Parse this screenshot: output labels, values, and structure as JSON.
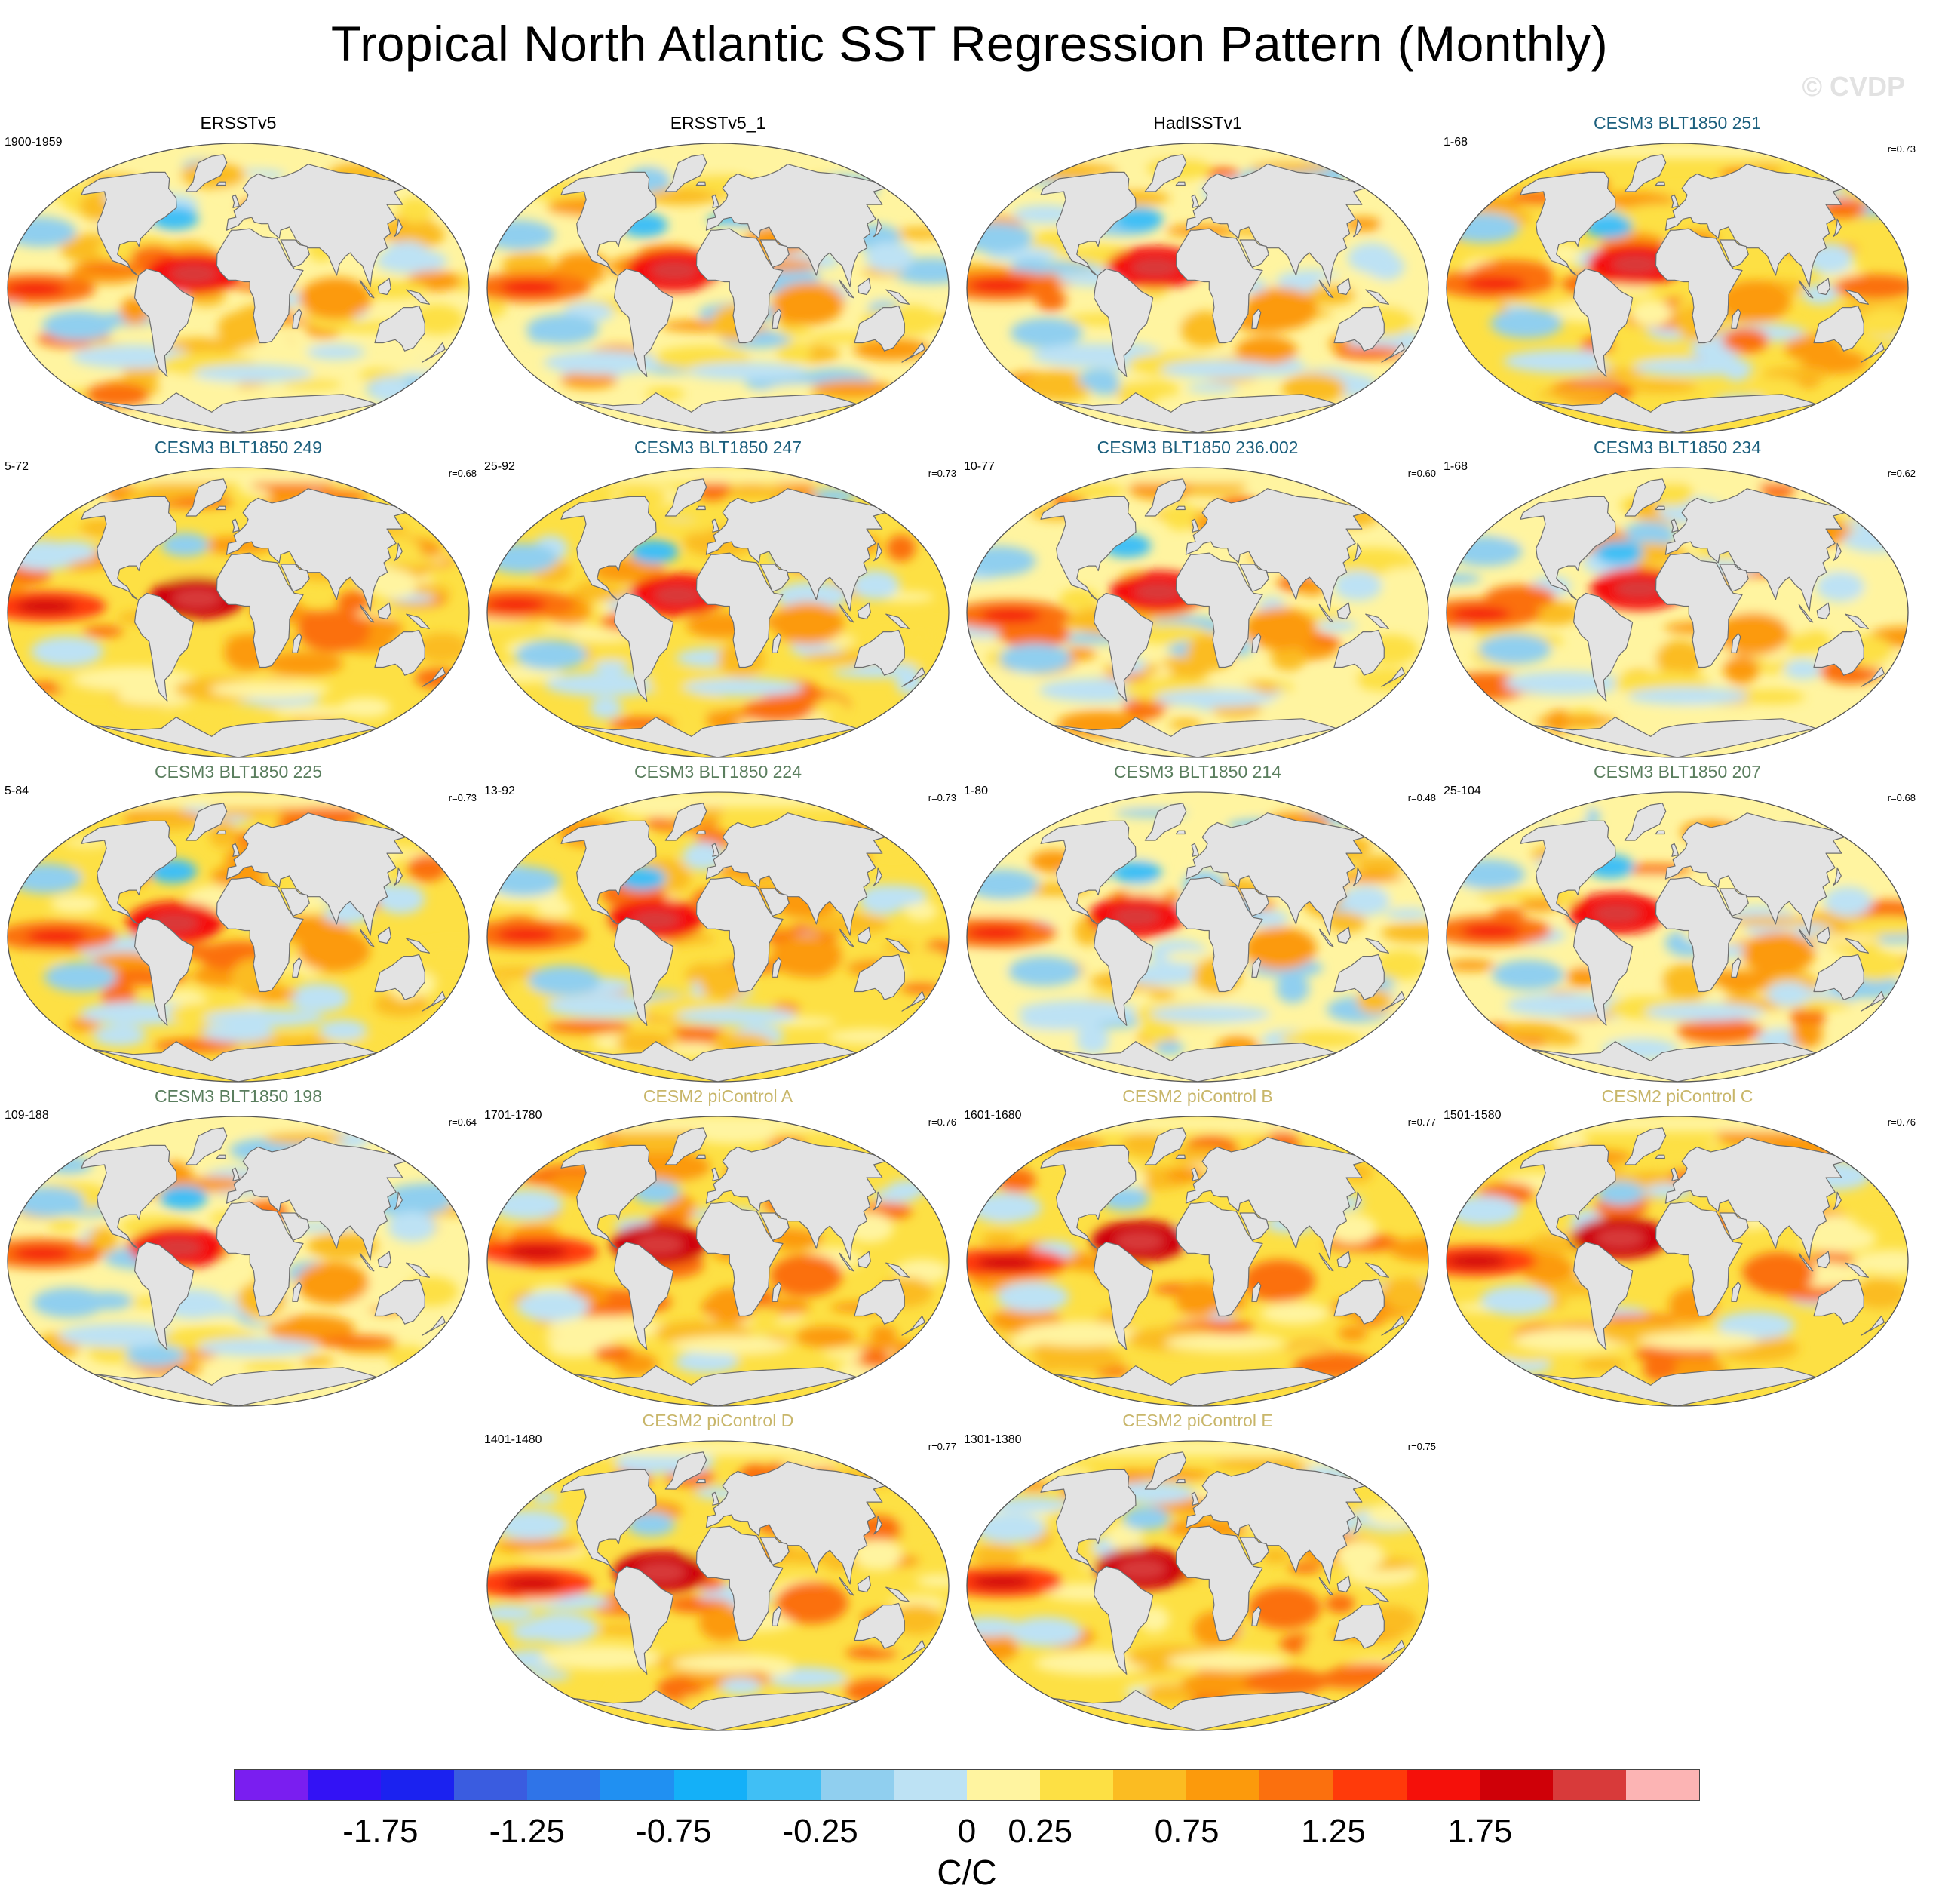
{
  "title": "Tropical North Atlantic SST Regression Pattern (Monthly)",
  "watermark": "© CVDP",
  "panels": [
    {
      "title": "ERSSTv5",
      "period": "1900-1959",
      "r": "",
      "color": "black",
      "seed": 1,
      "warm": 0.25
    },
    {
      "title": "ERSSTv5_1",
      "period": "",
      "r": "",
      "color": "black",
      "seed": 2,
      "warm": 0.1
    },
    {
      "title": "HadISSTv1",
      "period": "",
      "r": "",
      "color": "black",
      "seed": 3,
      "warm": 0.2
    },
    {
      "title": "CESM3 BLT1850 251",
      "period": "1-68",
      "r": "r=0.73",
      "color": "blue",
      "seed": 4,
      "warm": 0.35
    },
    {
      "title": "CESM3 BLT1850 249",
      "period": "5-72",
      "r": "r=0.68",
      "color": "blue",
      "seed": 5,
      "warm": 0.45
    },
    {
      "title": "CESM3 BLT1850 247",
      "period": "25-92",
      "r": "r=0.73",
      "color": "blue",
      "seed": 6,
      "warm": 0.35
    },
    {
      "title": "CESM3 BLT1850 236.002",
      "period": "10-77",
      "r": "r=0.60",
      "color": "blue",
      "seed": 7,
      "warm": 0.25
    },
    {
      "title": "CESM3 BLT1850 234",
      "period": "1-68",
      "r": "r=0.62",
      "color": "blue",
      "seed": 8,
      "warm": 0.3
    },
    {
      "title": "CESM3 BLT1850 225",
      "period": "5-84",
      "r": "r=0.73",
      "color": "green",
      "seed": 9,
      "warm": 0.35
    },
    {
      "title": "CESM3 BLT1850 224",
      "period": "13-92",
      "r": "r=0.73",
      "color": "green",
      "seed": 10,
      "warm": 0.35
    },
    {
      "title": "CESM3 BLT1850 214",
      "period": "1-80",
      "r": "r=0.48",
      "color": "green",
      "seed": 11,
      "warm": 0.15
    },
    {
      "title": "CESM3 BLT1850 207",
      "period": "25-104",
      "r": "r=0.68",
      "color": "green",
      "seed": 12,
      "warm": 0.3
    },
    {
      "title": "CESM3 BLT1850 198",
      "period": "109-188",
      "r": "r=0.64",
      "color": "green",
      "seed": 13,
      "warm": 0.2
    },
    {
      "title": "CESM2 piControl A",
      "period": "1701-1780",
      "r": "r=0.76",
      "color": "tan",
      "seed": 14,
      "warm": 0.45
    },
    {
      "title": "CESM2 piControl B",
      "period": "1601-1680",
      "r": "r=0.77",
      "color": "tan",
      "seed": 15,
      "warm": 0.4
    },
    {
      "title": "CESM2 piControl C",
      "period": "1501-1580",
      "r": "r=0.76",
      "color": "tan",
      "seed": 16,
      "warm": 0.45
    },
    {
      "title": "CESM2 piControl D",
      "period": "1401-1480",
      "r": "r=0.77",
      "color": "tan",
      "seed": 17,
      "warm": 0.45
    },
    {
      "title": "CESM2 piControl E",
      "period": "1301-1380",
      "r": "r=0.75",
      "color": "tan",
      "seed": 18,
      "warm": 0.4
    }
  ],
  "colorbar": {
    "colors": [
      "#7a1ef0",
      "#3312f5",
      "#1b22f0",
      "#3a5ce0",
      "#2f74e8",
      "#2090f2",
      "#14b0f8",
      "#40bff5",
      "#90cfef",
      "#bde2f4",
      "#fff4a0",
      "#fde044",
      "#fbbc22",
      "#fc9a0c",
      "#fb700e",
      "#ff3a0a",
      "#f5100a",
      "#cf0008",
      "#d83a3a",
      "#fcb4b4"
    ],
    "labels": [
      "-1.75",
      "-1.25",
      "-0.75",
      "-0.25",
      "0",
      "0.25",
      "0.75",
      "1.25",
      "1.75"
    ],
    "units": "C/C"
  }
}
